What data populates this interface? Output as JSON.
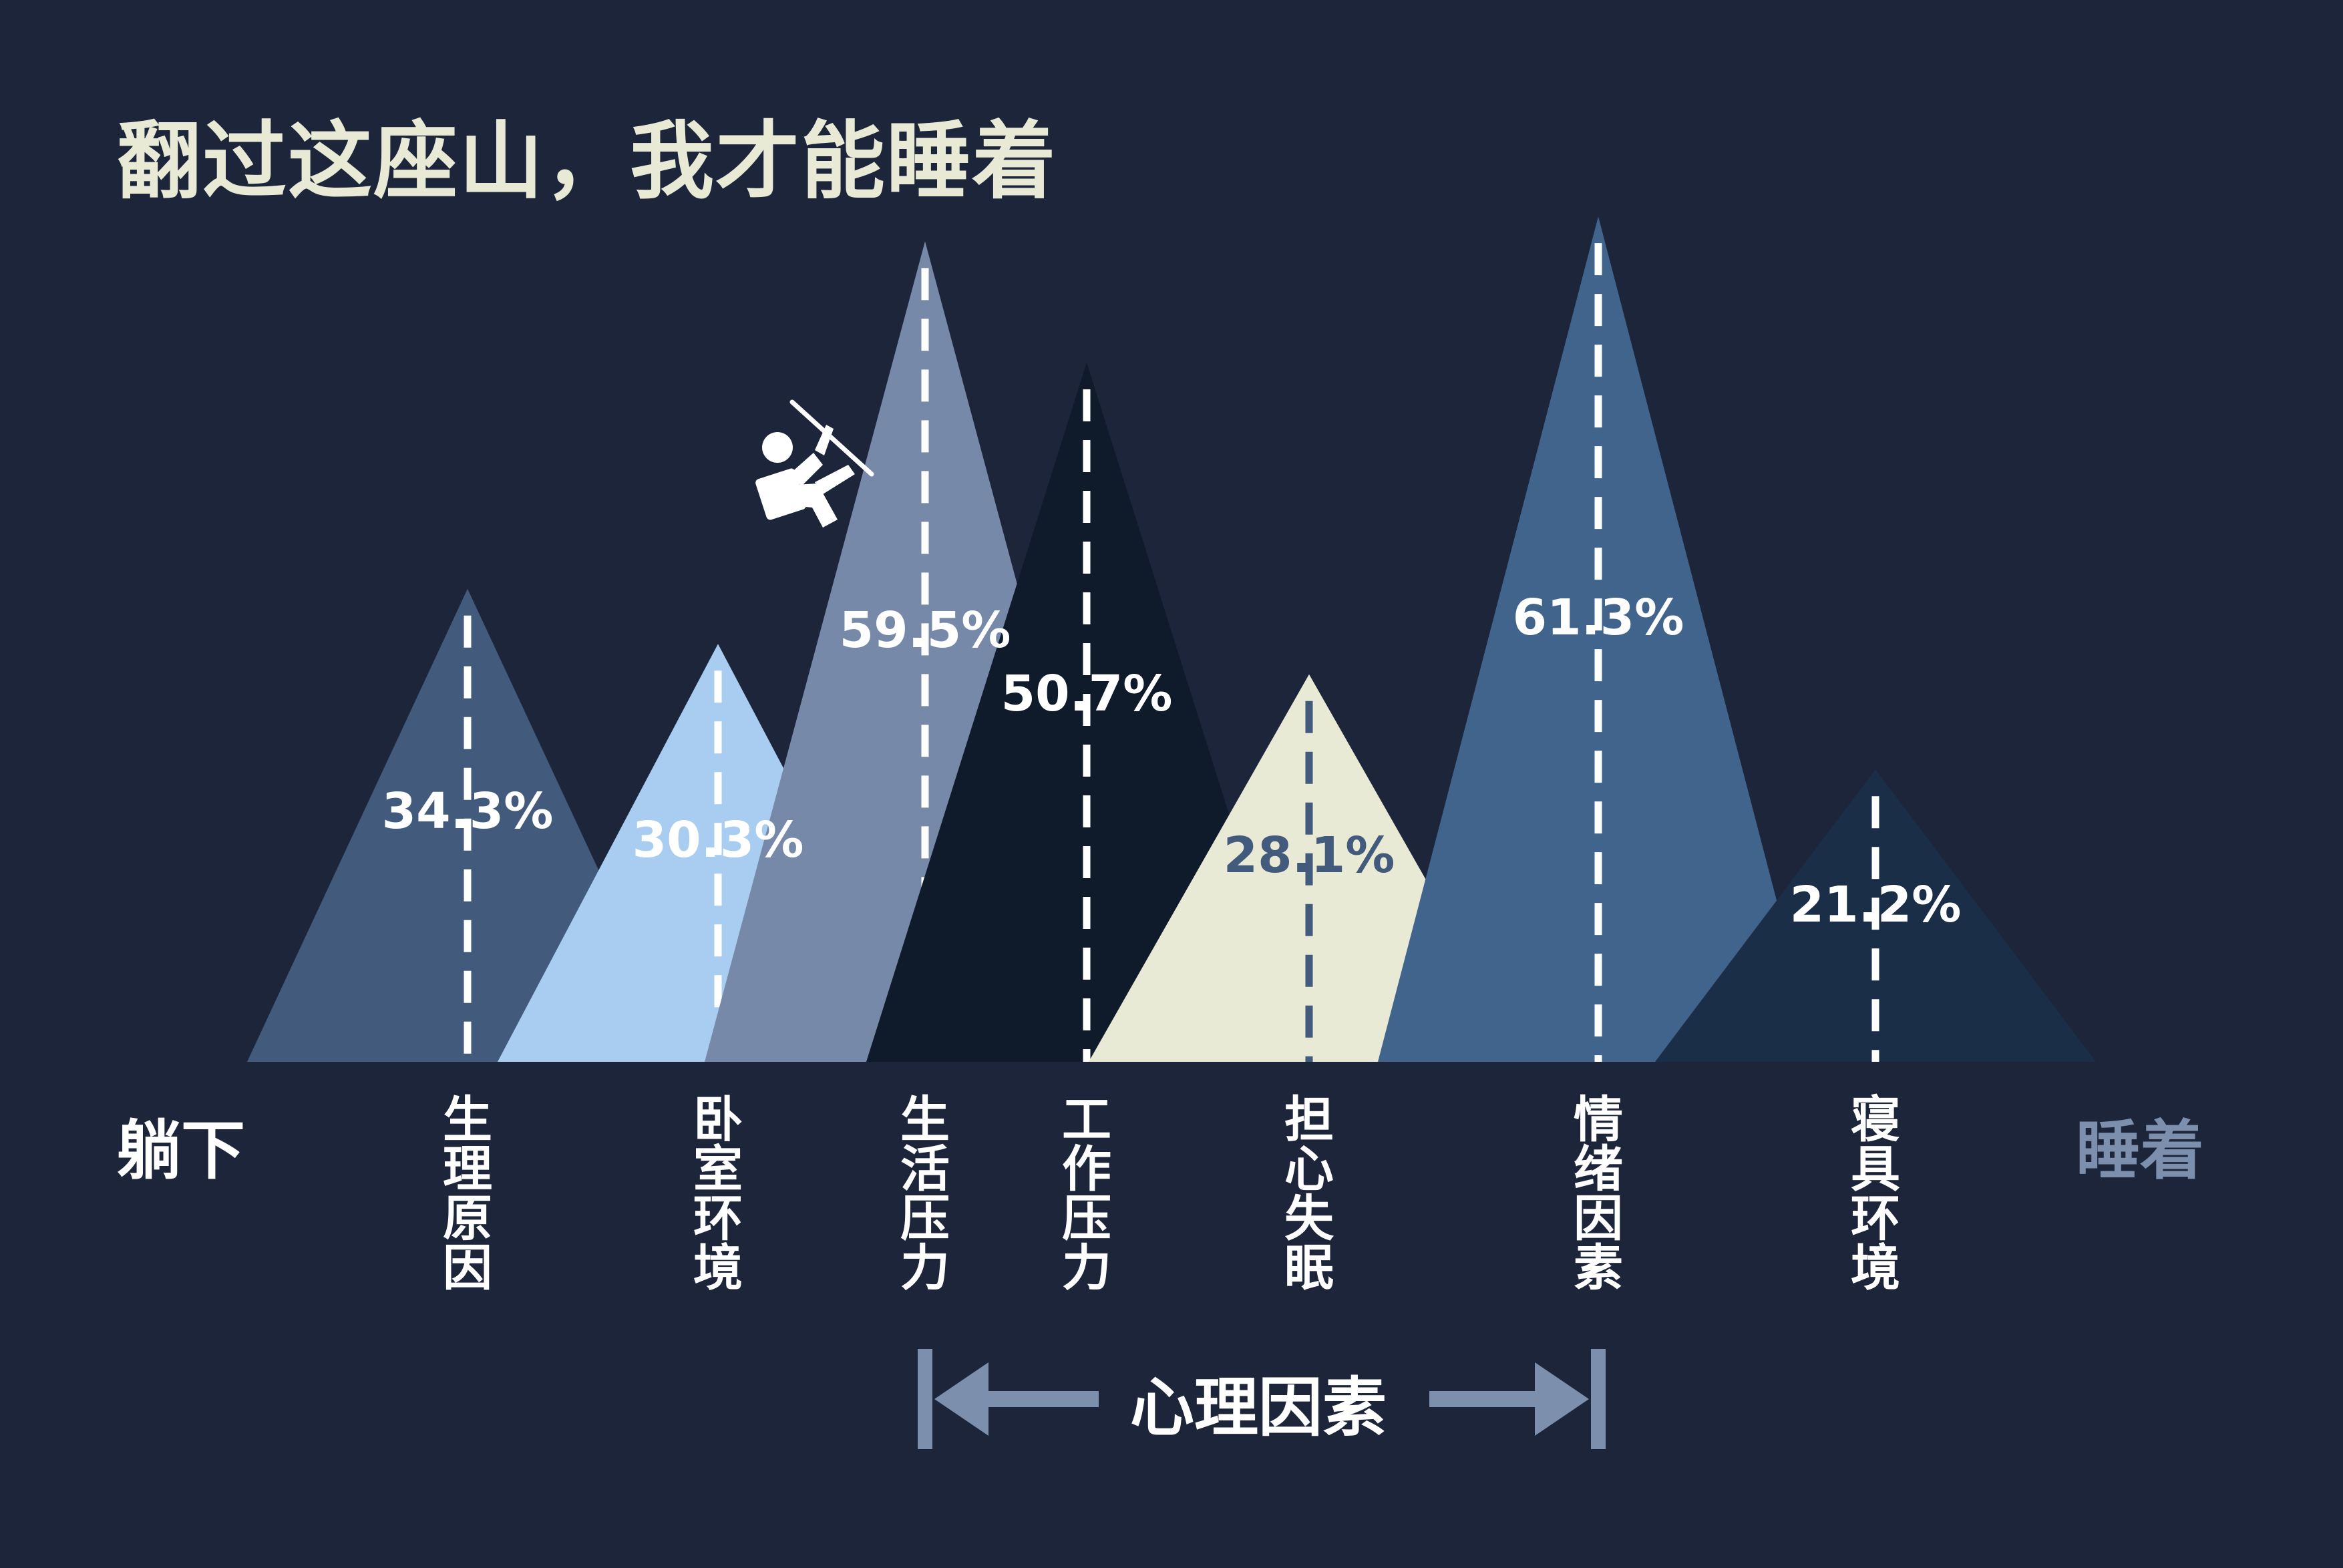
{
  "title": "翻过这座山，我才能睡着",
  "chart_data": {
    "type": "area",
    "start_label": "躺下",
    "end_label": "睡着",
    "series": [
      {
        "category": "生理原因",
        "value": 34.3,
        "color": "#425a7b",
        "line_color": "#ffffff",
        "text_color": "#ffffff"
      },
      {
        "category": "卧室环境",
        "value": 30.3,
        "color": "#a9cdf1",
        "line_color": "#ffffff",
        "text_color": "#ffffff"
      },
      {
        "category": "生活压力",
        "value": 59.5,
        "color": "#7789a8",
        "line_color": "#ffffff",
        "text_color": "#ffffff"
      },
      {
        "category": "工作压力",
        "value": 50.7,
        "color": "#0f1a2b",
        "line_color": "#ffffff",
        "text_color": "#ffffff"
      },
      {
        "category": "担心失眠",
        "value": 28.1,
        "color": "#e9ead5",
        "line_color": "#425a7b",
        "text_color": "#425a7b"
      },
      {
        "category": "情绪因素",
        "value": 61.3,
        "color": "#41648c",
        "line_color": "#ffffff",
        "text_color": "#ffffff"
      },
      {
        "category": "寝具环境",
        "value": 21.2,
        "color": "#1b2e48",
        "line_color": "#ffffff",
        "text_color": "#ffffff"
      }
    ],
    "bracket": {
      "label": "心理因素",
      "from_category": "生活压力",
      "to_category": "情绪因素",
      "color": "#7c8fad"
    }
  },
  "icons": {
    "climber": "mountain-climber-icon"
  }
}
